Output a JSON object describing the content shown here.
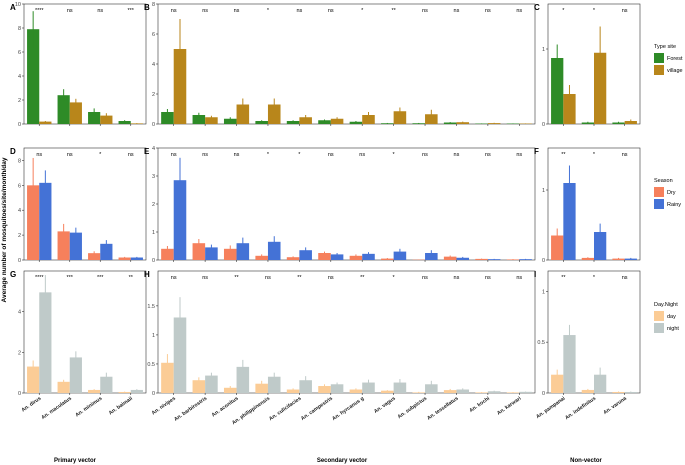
{
  "figure": {
    "ylabel": "Average number of mosquitoes/site/month/day",
    "group_labels": [
      "Primary vector",
      "Secondary vector",
      "Non-vector"
    ]
  },
  "legends": [
    {
      "title": "Type site",
      "entries": [
        {
          "label": "Forest",
          "color": "#2e8b27"
        },
        {
          "label": "village",
          "color": "#b8861b"
        }
      ]
    },
    {
      "title": "Season",
      "entries": [
        {
          "label": "Dry",
          "color": "#f6805c"
        },
        {
          "label": "Rainy",
          "color": "#4472d6"
        }
      ]
    },
    {
      "title": "Day.Night",
      "entries": [
        {
          "label": "day",
          "color": "#fbcc96"
        },
        {
          "label": "night",
          "color": "#bfcac9"
        }
      ]
    }
  ],
  "species": {
    "primary": [
      "An. dirus",
      "An. maculatus",
      "An. minimus",
      "An. baimaii"
    ],
    "secondary": [
      "An. nivipes",
      "An. barbirostris",
      "An. aconitus",
      "An. philippinensis",
      "An. culicifacies",
      "An. campestris",
      "An. hyrcanus g",
      "An. vagus",
      "An. subpictus",
      "An. tessellatus",
      "An. kochi",
      "An. karwari"
    ],
    "nonvector": [
      "An. pampanai",
      "An. indefinitus",
      "An. varuna"
    ]
  },
  "chart_data": [
    {
      "panel": "A",
      "type": "bar",
      "legend": "Type site",
      "ylim": [
        0,
        10
      ],
      "yticks": [
        0,
        2,
        4,
        6,
        8,
        10
      ],
      "categories": [
        "An. dirus",
        "An. maculatus",
        "An. minimus",
        "An. baimaii"
      ],
      "significance": [
        "****",
        "ns",
        "ns",
        "***"
      ],
      "series": [
        {
          "name": "Forest",
          "values": [
            7.9,
            2.4,
            1.0,
            0.25
          ],
          "errors": [
            1.5,
            0.5,
            0.3,
            0.07
          ]
        },
        {
          "name": "village",
          "values": [
            0.2,
            1.8,
            0.7,
            0.05
          ],
          "errors": [
            0.05,
            0.3,
            0.2,
            0.02
          ]
        }
      ]
    },
    {
      "panel": "B",
      "type": "bar",
      "legend": "Type site",
      "ylim": [
        0,
        8
      ],
      "yticks": [
        0,
        2,
        4,
        6,
        8
      ],
      "categories": [
        "An. nivipes",
        "An. barbirostris",
        "An. aconitus",
        "An. philippinensis",
        "An. culicifacies",
        "An. campestris",
        "An. hyrcanus g",
        "An. vagus",
        "An. subpictus",
        "An. tessellatus",
        "An. kochi",
        "An. karwari"
      ],
      "significance": [
        "ns",
        "ns",
        "ns",
        "*",
        "ns",
        "ns",
        "*",
        "**",
        "ns",
        "ns",
        "ns",
        "ns"
      ],
      "series": [
        {
          "name": "Forest",
          "values": [
            0.8,
            0.6,
            0.35,
            0.2,
            0.2,
            0.25,
            0.15,
            0.05,
            0.05,
            0.1,
            0.03,
            0.03
          ],
          "errors": [
            0.2,
            0.15,
            0.1,
            0.05,
            0.05,
            0.05,
            0.05,
            0.02,
            0.02,
            0.03,
            0.01,
            0.01
          ],
          "errors_note": ""
        },
        {
          "name": "village",
          "values": [
            5.0,
            0.45,
            1.3,
            1.3,
            0.45,
            0.35,
            0.6,
            0.85,
            0.65,
            0.12,
            0.06,
            0.03
          ],
          "errors": [
            2.0,
            0.1,
            0.4,
            0.4,
            0.15,
            0.1,
            0.2,
            0.25,
            0.3,
            0.04,
            0.02,
            0.01
          ]
        }
      ]
    },
    {
      "panel": "C",
      "type": "bar",
      "legend": "Type site",
      "ylim": [
        0,
        1.6
      ],
      "yticks": [
        0,
        1
      ],
      "categories": [
        "An. pampanai",
        "An. indefinitus",
        "An. varuna"
      ],
      "significance": [
        "*",
        "*",
        "ns"
      ],
      "series": [
        {
          "name": "Forest",
          "values": [
            0.88,
            0.02,
            0.02
          ],
          "errors": [
            0.18,
            0.01,
            0.01
          ]
        },
        {
          "name": "village",
          "values": [
            0.4,
            0.95,
            0.04
          ],
          "errors": [
            0.12,
            0.35,
            0.02
          ]
        }
      ]
    },
    {
      "panel": "D",
      "type": "bar",
      "legend": "Season",
      "ylim": [
        0,
        9
      ],
      "yticks": [
        0,
        2,
        4,
        6,
        8
      ],
      "categories": [
        "An. dirus",
        "An. maculatus",
        "An. minimus",
        "An. baimaii"
      ],
      "significance": [
        "ns",
        "ns",
        "*",
        "ns"
      ],
      "series": [
        {
          "name": "Dry",
          "values": [
            6.0,
            2.3,
            0.55,
            0.2
          ],
          "errors": [
            2.2,
            0.6,
            0.15,
            0.05
          ]
        },
        {
          "name": "Rainy",
          "values": [
            6.2,
            2.2,
            1.3,
            0.2
          ],
          "errors": [
            1.0,
            0.4,
            0.3,
            0.05
          ]
        }
      ]
    },
    {
      "panel": "E",
      "type": "bar",
      "legend": "Season",
      "ylim": [
        0,
        4
      ],
      "yticks": [
        0,
        1,
        2,
        3,
        4
      ],
      "categories": [
        "An. nivipes",
        "An. barbirostris",
        "An. aconitus",
        "An. philippinensis",
        "An. culicifacies",
        "An. campestris",
        "An. hyrcanus g",
        "An. vagus",
        "An. subpictus",
        "An. tessellatus",
        "An. kochi",
        "An. karwari"
      ],
      "significance": [
        "ns",
        "ns",
        "ns",
        "*",
        "*",
        "ns",
        "ns",
        "*",
        "ns",
        "ns",
        "ns",
        "ns"
      ],
      "series": [
        {
          "name": "Dry",
          "values": [
            0.4,
            0.6,
            0.4,
            0.15,
            0.1,
            0.25,
            0.15,
            0.05,
            0.01,
            0.12,
            0.04,
            0.02
          ],
          "errors": [
            0.1,
            0.15,
            0.12,
            0.05,
            0.03,
            0.05,
            0.05,
            0.02,
            0.01,
            0.04,
            0.01,
            0.01
          ]
        },
        {
          "name": "Rainy",
          "values": [
            2.85,
            0.45,
            0.6,
            0.65,
            0.35,
            0.2,
            0.22,
            0.3,
            0.25,
            0.08,
            0.03,
            0.03
          ],
          "errors": [
            0.8,
            0.1,
            0.2,
            0.2,
            0.1,
            0.05,
            0.06,
            0.1,
            0.1,
            0.03,
            0.01,
            0.01
          ]
        }
      ]
    },
    {
      "panel": "F",
      "type": "bar",
      "legend": "Season",
      "ylim": [
        0,
        1.6
      ],
      "yticks": [
        0,
        1
      ],
      "categories": [
        "An. pampanai",
        "An. indefinitus",
        "An. varuna"
      ],
      "significance": [
        "**",
        "*",
        "ns"
      ],
      "series": [
        {
          "name": "Dry",
          "values": [
            0.35,
            0.03,
            0.02
          ],
          "errors": [
            0.1,
            0.01,
            0.01
          ]
        },
        {
          "name": "Rainy",
          "values": [
            1.1,
            0.4,
            0.02
          ],
          "errors": [
            0.25,
            0.12,
            0.01
          ]
        }
      ]
    },
    {
      "panel": "G",
      "type": "bar",
      "legend": "Day.Night",
      "ylim": [
        0,
        6
      ],
      "yticks": [
        0,
        2,
        4
      ],
      "categories": [
        "An. dirus",
        "An. maculatus",
        "An. minimus",
        "An. baimaii"
      ],
      "significance": [
        "****",
        "***",
        "***",
        "**"
      ],
      "series": [
        {
          "name": "day",
          "values": [
            1.3,
            0.55,
            0.15,
            0.05
          ],
          "errors": [
            0.3,
            0.1,
            0.04,
            0.02
          ]
        },
        {
          "name": "night",
          "values": [
            4.95,
            1.75,
            0.8,
            0.15
          ],
          "errors": [
            0.85,
            0.3,
            0.2,
            0.04
          ]
        }
      ]
    },
    {
      "panel": "H",
      "type": "bar",
      "legend": "Day.Night",
      "ylim": [
        0,
        2.1
      ],
      "yticks": [
        0,
        0.5,
        1,
        1.5
      ],
      "categories": [
        "An. nivipes",
        "An. barbirostris",
        "An. aconitus",
        "An. philippinensis",
        "An. culicifacies",
        "An. campestris",
        "An. hyrcanus g",
        "An. vagus",
        "An. subpictus",
        "An. tessellatus",
        "An. kochi",
        "An. karwari"
      ],
      "significance": [
        "ns",
        "ns",
        "**",
        "ns",
        "**",
        "ns",
        "**",
        "*",
        "ns",
        "ns",
        "ns",
        "ns"
      ],
      "series": [
        {
          "name": "day",
          "values": [
            0.52,
            0.22,
            0.09,
            0.16,
            0.06,
            0.12,
            0.06,
            0.04,
            0.01,
            0.05,
            0.01,
            0.01
          ],
          "errors": [
            0.15,
            0.05,
            0.03,
            0.05,
            0.02,
            0.03,
            0.02,
            0.01,
            0.01,
            0.02,
            0.005,
            0.005
          ]
        },
        {
          "name": "night",
          "values": [
            1.3,
            0.3,
            0.45,
            0.28,
            0.22,
            0.15,
            0.18,
            0.18,
            0.15,
            0.06,
            0.03,
            0.02
          ],
          "errors": [
            0.35,
            0.05,
            0.12,
            0.07,
            0.07,
            0.03,
            0.05,
            0.06,
            0.06,
            0.02,
            0.01,
            0.005
          ]
        }
      ]
    },
    {
      "panel": "I",
      "type": "bar",
      "legend": "Day.Night",
      "ylim": [
        0,
        1.2
      ],
      "yticks": [
        0,
        0.5,
        1
      ],
      "categories": [
        "An. pampanai",
        "An. indefinitus",
        "An. varuna"
      ],
      "significance": [
        "**",
        "*",
        "ns"
      ],
      "series": [
        {
          "name": "day",
          "values": [
            0.18,
            0.03,
            0.01
          ],
          "errors": [
            0.05,
            0.01,
            0.005
          ]
        },
        {
          "name": "night",
          "values": [
            0.57,
            0.18,
            0.01
          ],
          "errors": [
            0.1,
            0.07,
            0.005
          ]
        }
      ]
    }
  ]
}
